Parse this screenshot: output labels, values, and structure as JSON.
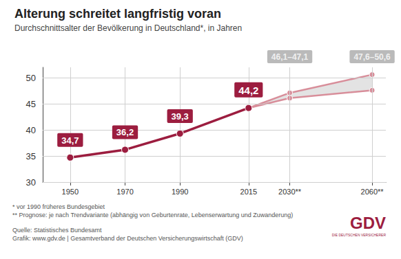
{
  "chart_data": {
    "type": "line",
    "title": "Alterung schreitet langfristig voran",
    "subtitle": "Durchschnittsalter der Bevölkerung in Deutschland*, in Jahren",
    "series": [
      {
        "x": [
          1950,
          1970,
          1990,
          2015
        ],
        "values": [
          34.7,
          36.2,
          39.3,
          44.2
        ],
        "value_labels": [
          "34,7",
          "36,2",
          "39,3",
          "44,2"
        ],
        "color": "#9c1d3f",
        "marker": "circle",
        "line_style": "solid"
      },
      {
        "x": [
          2015,
          2030,
          2060
        ],
        "values": [
          44.2,
          47.1,
          50.6
        ],
        "color": "#d88e9a",
        "marker": "circle",
        "line_style": "solid"
      },
      {
        "x": [
          2015,
          2030,
          2060
        ],
        "values": [
          44.2,
          46.1,
          47.6
        ],
        "color": "#d88e9a",
        "marker": "circle",
        "line_style": "solid"
      }
    ],
    "annotations": [
      {
        "x": 2030,
        "text": "46,1–47,1"
      },
      {
        "x": 2060,
        "text": "47,6–50,6"
      }
    ],
    "xlim": [
      1940,
      2065
    ],
    "xticks": [
      1950,
      1970,
      1990,
      2015,
      {
        "value": 2030,
        "label": "2030**"
      },
      {
        "value": 2060,
        "label": "2060**"
      }
    ],
    "ylim": [
      30,
      52
    ],
    "yticks": [
      30,
      35,
      40,
      45,
      50
    ],
    "grid": true,
    "data_labels": true,
    "notes": [
      "* vor 1990 früheres Bundesgebiet",
      "** Prognose: je nach Trendvariante (abhängig von Geburtenrate, Lebenserwartung und Zuwanderung)"
    ],
    "source": "Quelle: Statistisches Bundesamt",
    "credit": "Grafik: www.gdv.de | Gesamtverband der Deutschen Versicherungswirtschaft (GDV)",
    "logo": "GDV",
    "logo_tagline": "DIE DEUTSCHEN VERSICHERER"
  }
}
